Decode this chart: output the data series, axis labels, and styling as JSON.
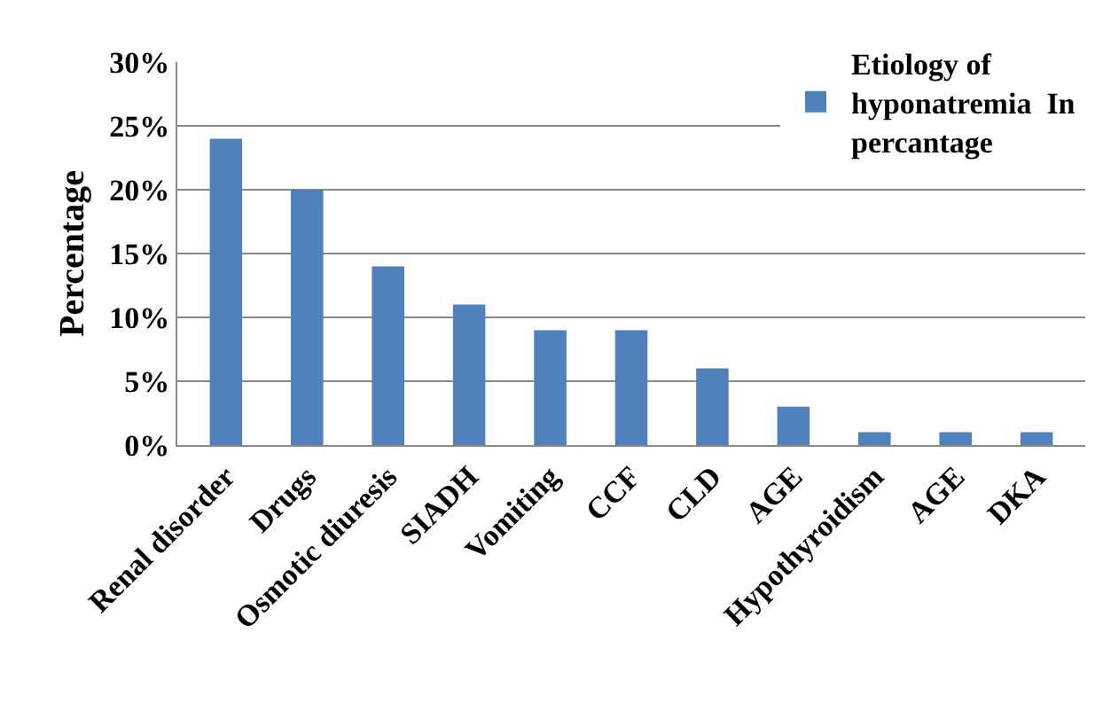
{
  "chart_data": {
    "type": "bar",
    "ylabel": "Percentage",
    "categories": [
      "Renal disorder",
      "Drugs",
      "Osmotic diuresis",
      "SIADH",
      "Vomiting",
      "CCF",
      "CLD",
      "AGE",
      "Hypothyroidism",
      "AGE",
      "DKA"
    ],
    "series": [
      {
        "name": "Etiology of hyponatremia  In percantage",
        "color": "#4f81bd",
        "values": [
          24,
          20,
          14,
          11,
          9,
          9,
          6,
          3,
          1,
          1,
          1
        ]
      }
    ],
    "ylim": [
      0,
      30
    ],
    "yticks": [
      {
        "value": 0,
        "label": "0%"
      },
      {
        "value": 5,
        "label": "5%"
      },
      {
        "value": 10,
        "label": "10%"
      },
      {
        "value": 15,
        "label": "15%"
      },
      {
        "value": 20,
        "label": "20%"
      },
      {
        "value": 25,
        "label": "25%"
      },
      {
        "value": 30,
        "label": "30%"
      }
    ],
    "grid": "y",
    "legend": "top right"
  }
}
